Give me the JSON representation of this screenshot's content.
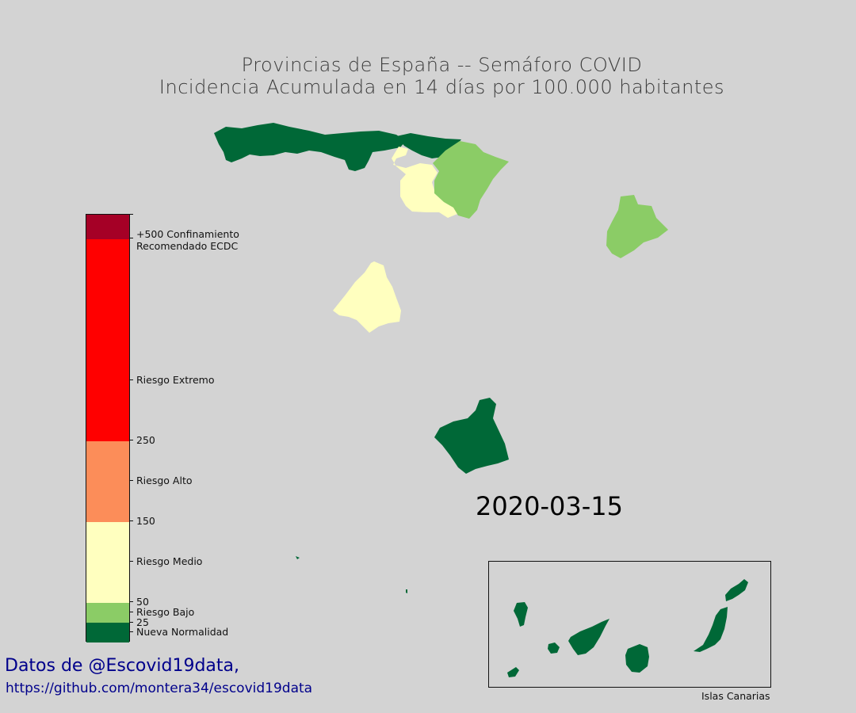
{
  "title": {
    "line1": "Provincias de España -- Semáforo COVID",
    "line2": "Incidencia Acumulada en 14 días por 100.000 habitantes"
  },
  "date": "2020-03-15",
  "colors": {
    "background": "#d3d3d3",
    "confinamiento": "#a50026",
    "extremo": "#ff0000",
    "alto": "#fc8d59",
    "medio": "#ffffbf",
    "bajo": "#8bcc66",
    "normalidad": "#006837"
  },
  "colorbar": {
    "tick_labels": {
      "confinamiento_line1": "+500 Confinamiento",
      "confinamiento_line2": "Recomendado ECDC",
      "extremo": "Riesgo Extremo",
      "v250": "250",
      "alto": "Riesgo Alto",
      "v150": "150",
      "medio": "Riesgo Medio",
      "v50": "50",
      "bajo": "Riesgo Bajo",
      "v25": "25",
      "normalidad": "Nueva Normalidad"
    }
  },
  "regions": {
    "galicia_asturias_cantabria": "Nueva Normalidad",
    "pais_vasco": "Nueva Normalidad",
    "burgos_soria": "Riesgo Medio",
    "navarra_aragon_norte": "Riesgo Bajo",
    "cataluna_barcelona": "Riesgo Bajo",
    "madrid": "Riesgo Medio",
    "murcia": "Nueva Normalidad",
    "canarias": "Nueva Normalidad"
  },
  "inset": {
    "label": "Islas Canarias"
  },
  "credits": {
    "line1": "Datos de @Escovid19data,",
    "line2": "https://github.com/montera34/escovid19data"
  }
}
